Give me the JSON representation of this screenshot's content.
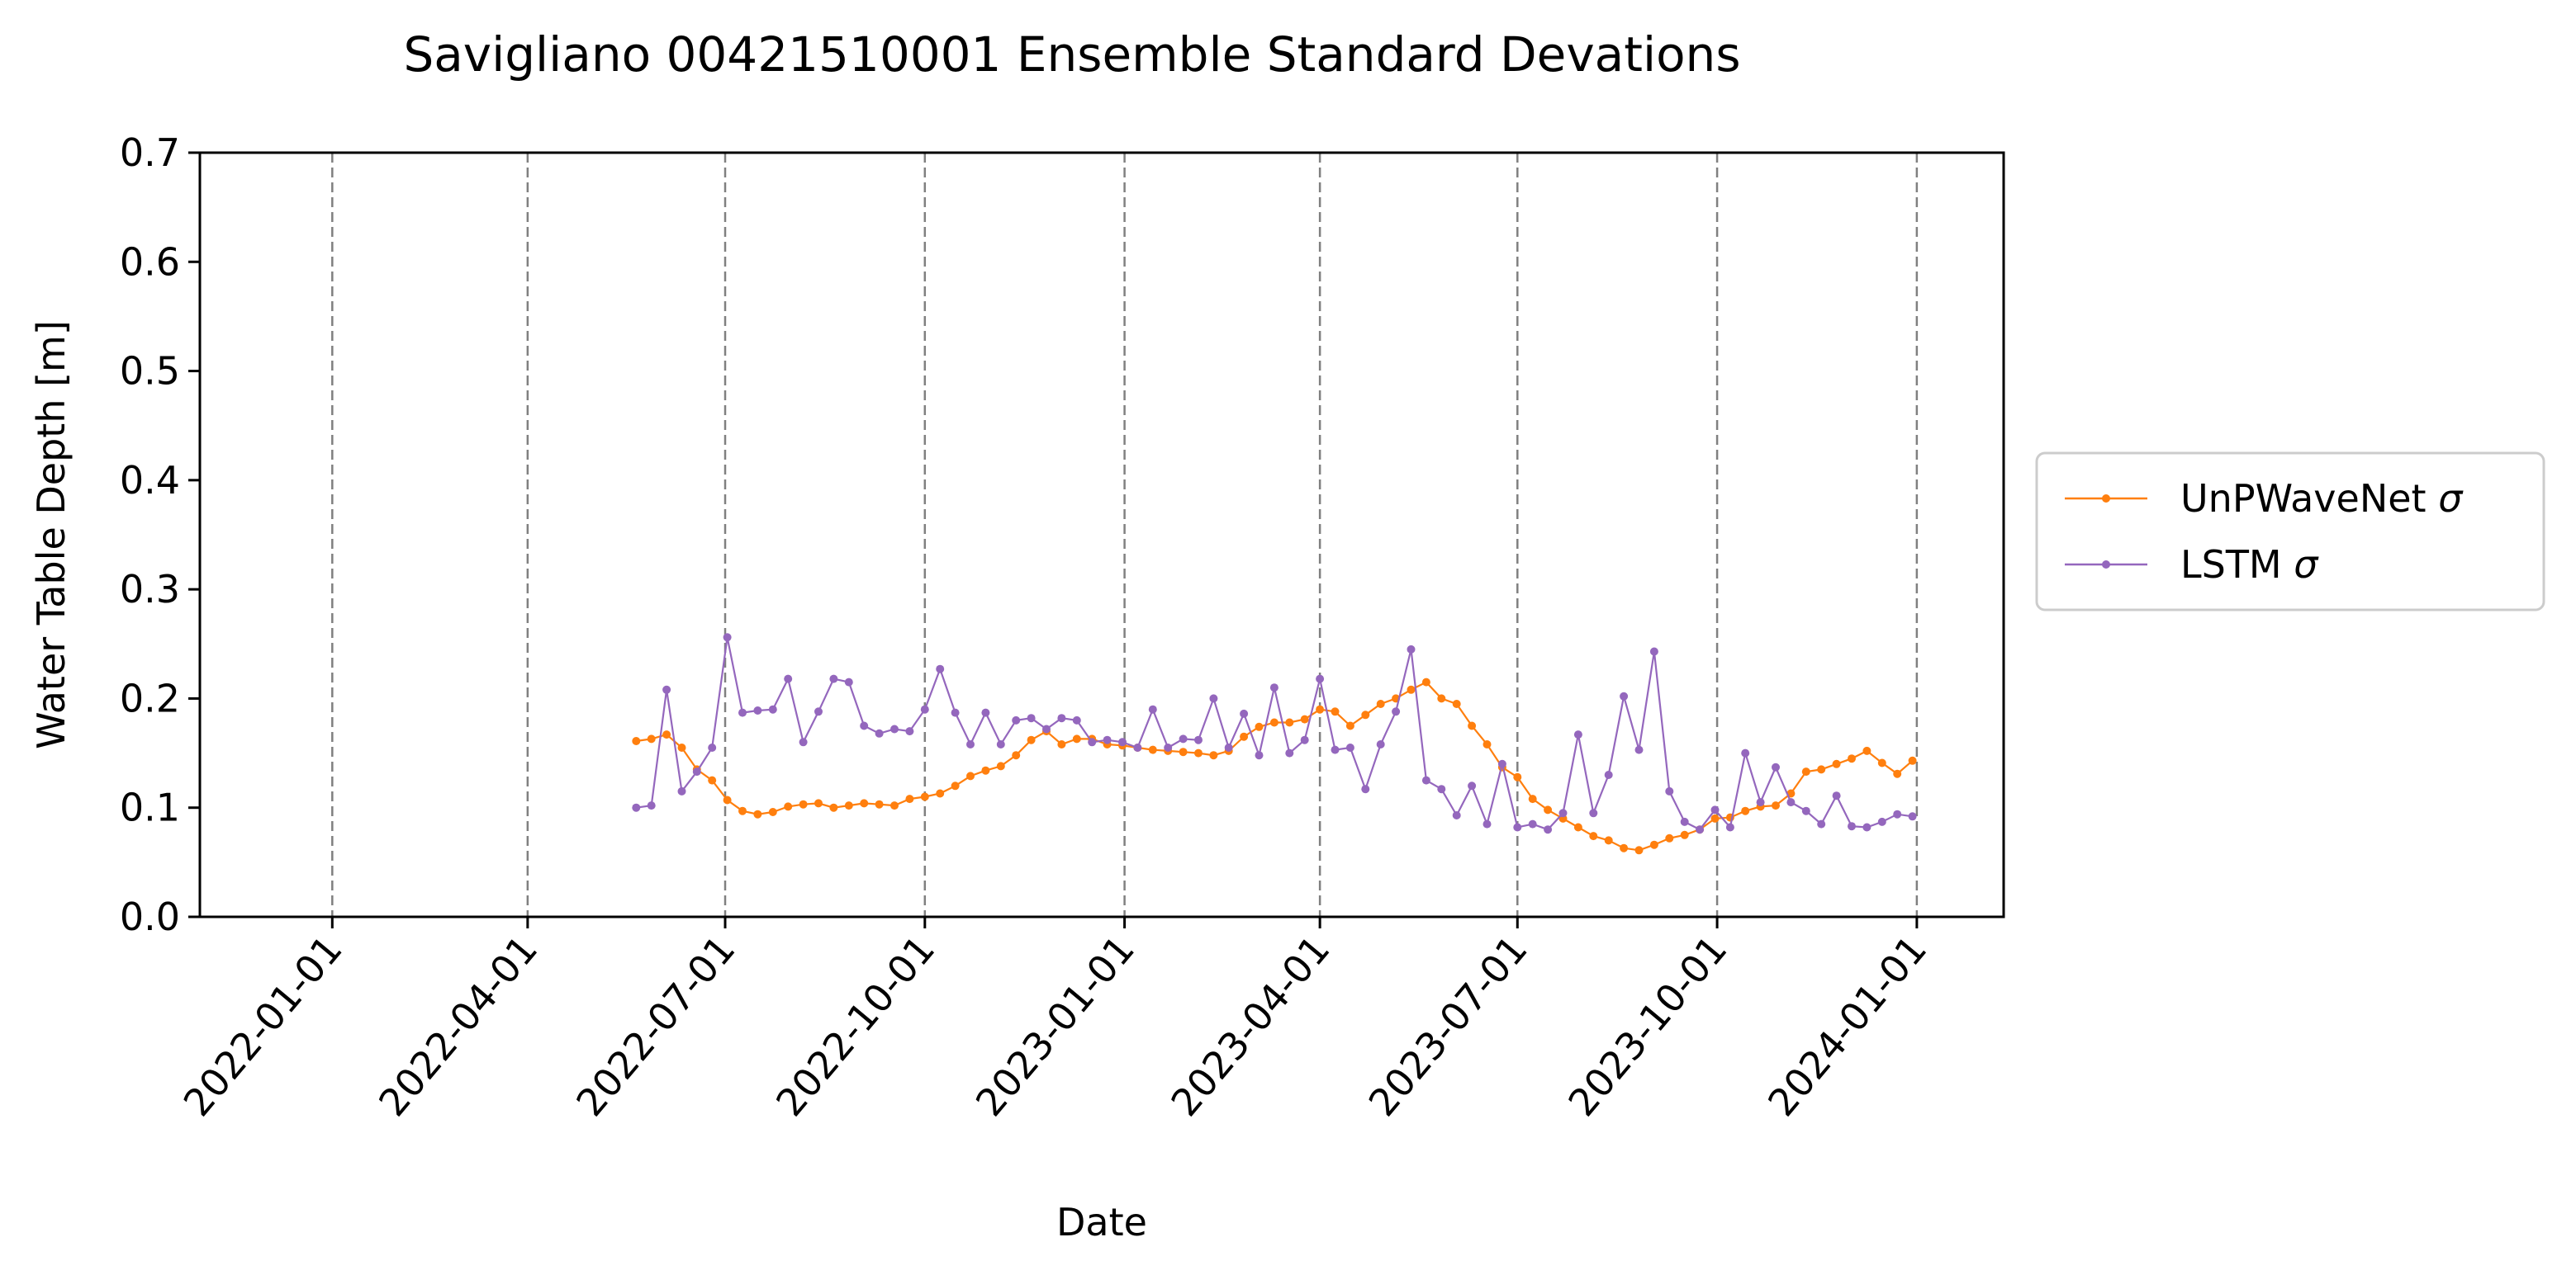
{
  "chart_data": {
    "type": "line",
    "title": "Savigliano 00421510001 Ensemble Standard Devations",
    "xlabel": "Date",
    "ylabel": "Water Table Depth [m]",
    "xlim": [
      "2021-11-01",
      "2024-02-10"
    ],
    "ylim": [
      0,
      0.7
    ],
    "yticks": [
      "0.0",
      "0.1",
      "0.2",
      "0.3",
      "0.4",
      "0.5",
      "0.6",
      "0.7"
    ],
    "xticks": [
      "2022-01-01",
      "2022-04-01",
      "2022-07-01",
      "2022-10-01",
      "2023-01-01",
      "2023-04-01",
      "2023-07-01",
      "2023-10-01",
      "2024-01-01"
    ],
    "vertical_dashed_lines_at_xticks": true,
    "legend": {
      "placement": "center-right outside"
    },
    "x_start": "2022-05-21",
    "x_step_days": 7,
    "series": [
      {
        "name": "UnPWaveNet σ",
        "legend_label": "UnPWaveNet ",
        "legend_symbol": "σ",
        "color": "#ff7f0e",
        "values": [
          0.161,
          0.163,
          0.167,
          0.155,
          0.135,
          0.125,
          0.107,
          0.097,
          0.094,
          0.096,
          0.101,
          0.103,
          0.104,
          0.1,
          0.102,
          0.104,
          0.103,
          0.102,
          0.108,
          0.11,
          0.113,
          0.12,
          0.129,
          0.134,
          0.138,
          0.148,
          0.162,
          0.17,
          0.158,
          0.163,
          0.163,
          0.158,
          0.157,
          0.155,
          0.153,
          0.152,
          0.151,
          0.15,
          0.148,
          0.152,
          0.165,
          0.174,
          0.178,
          0.178,
          0.181,
          0.19,
          0.188,
          0.175,
          0.185,
          0.195,
          0.2,
          0.208,
          0.215,
          0.2,
          0.195,
          0.175,
          0.158,
          0.137,
          0.128,
          0.108,
          0.098,
          0.09,
          0.082,
          0.074,
          0.07,
          0.063,
          0.061,
          0.066,
          0.072,
          0.075,
          0.08,
          0.09,
          0.091,
          0.097,
          0.101,
          0.102,
          0.113,
          0.133,
          0.135,
          0.14,
          0.145,
          0.152,
          0.141,
          0.131,
          0.143
        ]
      },
      {
        "name": "LSTM σ",
        "legend_label": "LSTM ",
        "legend_symbol": "σ",
        "color": "#9467bd",
        "values": [
          0.1,
          0.102,
          0.208,
          0.115,
          0.133,
          0.155,
          0.256,
          0.187,
          0.189,
          0.19,
          0.218,
          0.16,
          0.188,
          0.218,
          0.215,
          0.175,
          0.168,
          0.172,
          0.17,
          0.19,
          0.227,
          0.187,
          0.158,
          0.187,
          0.158,
          0.18,
          0.182,
          0.172,
          0.182,
          0.18,
          0.16,
          0.162,
          0.16,
          0.155,
          0.19,
          0.155,
          0.163,
          0.162,
          0.2,
          0.155,
          0.186,
          0.148,
          0.21,
          0.15,
          0.162,
          0.218,
          0.153,
          0.155,
          0.117,
          0.158,
          0.188,
          0.245,
          0.125,
          0.117,
          0.093,
          0.12,
          0.085,
          0.14,
          0.082,
          0.085,
          0.08,
          0.095,
          0.167,
          0.095,
          0.13,
          0.202,
          0.153,
          0.243,
          0.115,
          0.087,
          0.08,
          0.098,
          0.082,
          0.15,
          0.105,
          0.137,
          0.105,
          0.097,
          0.085,
          0.111,
          0.083,
          0.082,
          0.087,
          0.094,
          0.092
        ]
      }
    ]
  }
}
